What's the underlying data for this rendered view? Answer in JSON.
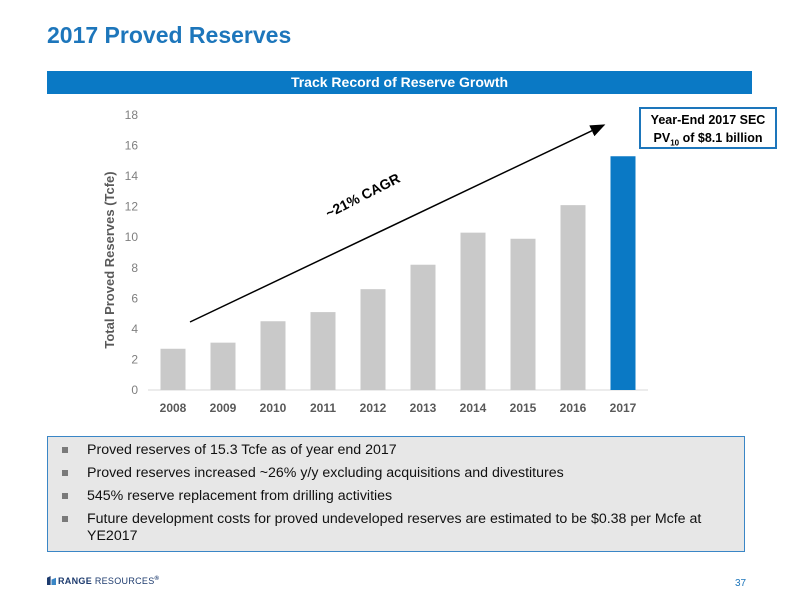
{
  "slide": {
    "title": "2017 Proved Reserves",
    "banner": "Track Record of Reserve Growth",
    "page_number": "37"
  },
  "callout": {
    "line1": "Year-End 2017 SEC",
    "line2_prefix": "PV",
    "line2_sub": "10",
    "line2_suffix": " of $8.1 billion"
  },
  "annotation": {
    "cagr": "~21% CAGR"
  },
  "bullets": [
    "Proved reserves of 15.3 Tcfe as of year end 2017",
    "Proved reserves increased ~26% y/y excluding acquisitions and divestitures",
    "545% reserve replacement from drilling activities",
    "Future development costs for proved undeveloped reserves are estimated to be $0.38 per Mcfe at YE2017"
  ],
  "footer": {
    "logo_bold": "RANGE",
    "logo_thin": " RESOURCES",
    "logo_mark": "®"
  },
  "colors": {
    "accent": "#1d76bb",
    "bar_default": "#c9c9c9",
    "bar_highlight": "#0a79c5"
  },
  "chart_data": {
    "type": "bar",
    "categories": [
      "2008",
      "2009",
      "2010",
      "2011",
      "2012",
      "2013",
      "2014",
      "2015",
      "2016",
      "2017"
    ],
    "values": [
      2.7,
      3.1,
      4.5,
      5.1,
      6.6,
      8.2,
      10.3,
      9.9,
      12.1,
      15.3
    ],
    "highlight_index": 9,
    "ylabel": "Total Proved Reserves (Tcfe)",
    "xlabel": "",
    "ylim": [
      0,
      18
    ],
    "yticks": [
      "0",
      "2",
      "4",
      "6",
      "8",
      "10",
      "12",
      "14",
      "16",
      "18"
    ],
    "grid": false,
    "trend_arrow": true
  }
}
